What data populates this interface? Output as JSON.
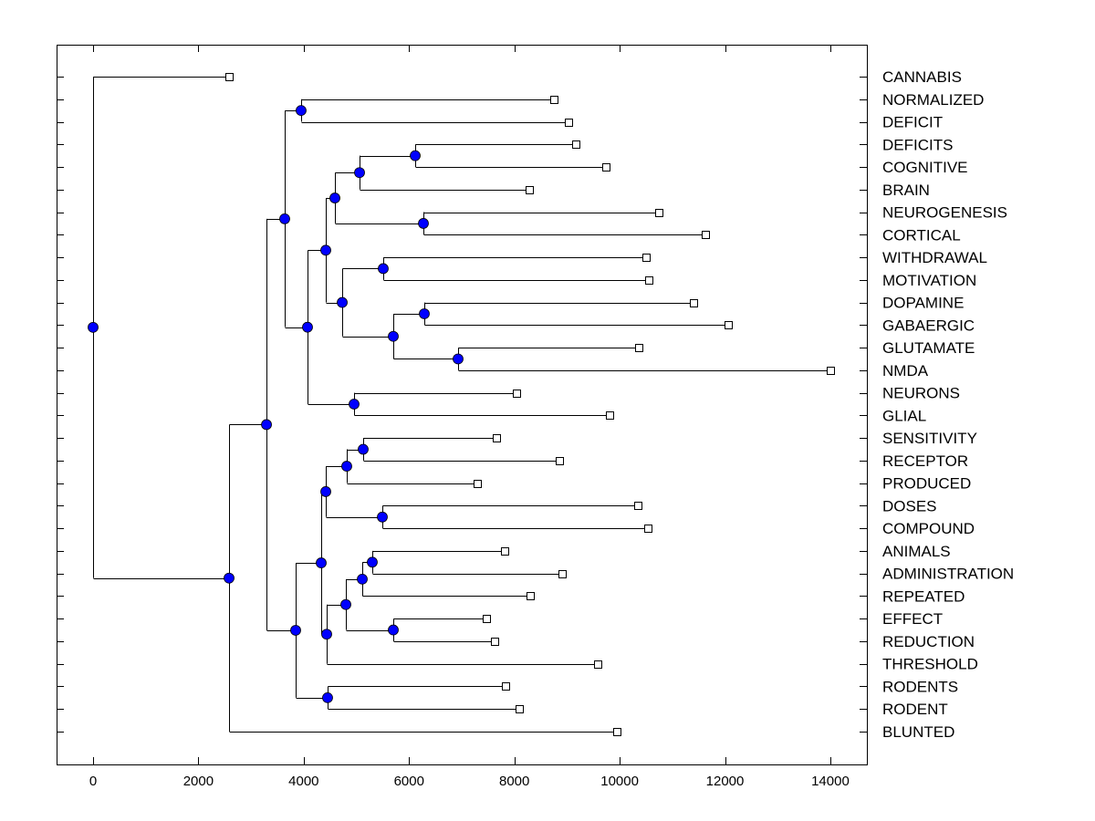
{
  "chart_data": {
    "type": "dendrogram",
    "title": "",
    "xlabel": "",
    "ylabel": "",
    "xlim": [
      -700,
      14700
    ],
    "xticks": [
      0,
      2000,
      4000,
      6000,
      8000,
      10000,
      12000,
      14000
    ],
    "xtick_labels": [
      "0",
      "2000",
      "4000",
      "6000",
      "8000",
      "10000",
      "12000",
      "14000"
    ],
    "grid": false,
    "legend": "none",
    "colors": {
      "node_fill": "#0000ff",
      "line": "#000000",
      "leaf_marker_fill": "#ffffff"
    },
    "leaves": [
      {
        "label": "CANNABIS",
        "value": 2582
      },
      {
        "label": "NORMALIZED",
        "value": 8750
      },
      {
        "label": "DEFICIT",
        "value": 9030
      },
      {
        "label": "DEFICITS",
        "value": 9170
      },
      {
        "label": "COGNITIVE",
        "value": 9740
      },
      {
        "label": "BRAIN",
        "value": 8280
      },
      {
        "label": "NEUROGENESIS",
        "value": 10740
      },
      {
        "label": "CORTICAL",
        "value": 11630
      },
      {
        "label": "WITHDRAWAL",
        "value": 10500
      },
      {
        "label": "MOTIVATION",
        "value": 10550
      },
      {
        "label": "DOPAMINE",
        "value": 11400
      },
      {
        "label": "GABAERGIC",
        "value": 12060
      },
      {
        "label": "GLUTAMATE",
        "value": 10360
      },
      {
        "label": "NMDA",
        "value": 14000
      },
      {
        "label": "NEURONS",
        "value": 8040
      },
      {
        "label": "GLIAL",
        "value": 9810
      },
      {
        "label": "SENSITIVITY",
        "value": 7660
      },
      {
        "label": "RECEPTOR",
        "value": 8860
      },
      {
        "label": "PRODUCED",
        "value": 7300
      },
      {
        "label": "DOSES",
        "value": 10350
      },
      {
        "label": "COMPOUND",
        "value": 10540
      },
      {
        "label": "ANIMALS",
        "value": 7820
      },
      {
        "label": "ADMINISTRATION",
        "value": 8910
      },
      {
        "label": "REPEATED",
        "value": 8300
      },
      {
        "label": "EFFECT",
        "value": 7470
      },
      {
        "label": "REDUCTION",
        "value": 7620
      },
      {
        "label": "THRESHOLD",
        "value": 9580
      },
      {
        "label": "RODENTS",
        "value": 7830
      },
      {
        "label": "RODENT",
        "value": 8090
      },
      {
        "label": "BLUNTED",
        "value": 9950
      }
    ],
    "tree": {
      "value": 0,
      "children": [
        {
          "leaf": 0
        },
        {
          "value": 2582,
          "children": [
            {
              "value": 3293,
              "children": [
                {
                  "value": 3639,
                  "children": [
                    {
                      "value": 3950,
                      "children": [
                        {
                          "leaf": 1
                        },
                        {
                          "leaf": 2
                        }
                      ]
                    },
                    {
                      "value": 4072,
                      "children": [
                        {
                          "value": 4419,
                          "children": [
                            {
                              "value": 4592,
                              "children": [
                                {
                                  "value": 5060,
                                  "children": [
                                    {
                                      "value": 6117,
                                      "children": [
                                        {
                                          "leaf": 3
                                        },
                                        {
                                          "leaf": 4
                                        }
                                      ]
                                    },
                                    {
                                      "leaf": 5
                                    }
                                  ]
                                },
                                {
                                  "value": 6273,
                                  "children": [
                                    {
                                      "leaf": 6
                                    },
                                    {
                                      "leaf": 7
                                    }
                                  ]
                                }
                              ]
                            },
                            {
                              "value": 4731,
                              "children": [
                                {
                                  "value": 5510,
                                  "children": [
                                    {
                                      "leaf": 8
                                    },
                                    {
                                      "leaf": 9
                                    }
                                  ]
                                },
                                {
                                  "value": 5701,
                                  "children": [
                                    {
                                      "value": 6290,
                                      "children": [
                                        {
                                          "leaf": 10
                                        },
                                        {
                                          "leaf": 11
                                        }
                                      ]
                                    },
                                    {
                                      "value": 6931,
                                      "children": [
                                        {
                                          "leaf": 12
                                        },
                                        {
                                          "leaf": 13
                                        }
                                      ]
                                    }
                                  ]
                                }
                              ]
                            }
                          ]
                        },
                        {
                          "value": 4956,
                          "children": [
                            {
                              "leaf": 14
                            },
                            {
                              "leaf": 15
                            }
                          ]
                        }
                      ]
                    }
                  ]
                },
                {
                  "value": 3847,
                  "children": [
                    {
                      "value": 4332,
                      "children": [
                        {
                          "value": 4419,
                          "children": [
                            {
                              "value": 4817,
                              "children": [
                                {
                                  "value": 5129,
                                  "children": [
                                    {
                                      "leaf": 16
                                    },
                                    {
                                      "leaf": 17
                                    }
                                  ]
                                },
                                {
                                  "leaf": 18
                                }
                              ]
                            },
                            {
                              "value": 5493,
                              "children": [
                                {
                                  "leaf": 19
                                },
                                {
                                  "leaf": 20
                                }
                              ]
                            }
                          ]
                        },
                        {
                          "value": 4436,
                          "children": [
                            {
                              "value": 4800,
                              "children": [
                                {
                                  "value": 5112,
                                  "children": [
                                    {
                                      "value": 5302,
                                      "children": [
                                        {
                                          "leaf": 21
                                        },
                                        {
                                          "leaf": 22
                                        }
                                      ]
                                    },
                                    {
                                      "leaf": 23
                                    }
                                  ]
                                },
                                {
                                  "value": 5701,
                                  "children": [
                                    {
                                      "leaf": 24
                                    },
                                    {
                                      "leaf": 25
                                    }
                                  ]
                                }
                              ]
                            },
                            {
                              "leaf": 26
                            }
                          ]
                        }
                      ]
                    },
                    {
                      "value": 4453,
                      "children": [
                        {
                          "leaf": 27
                        },
                        {
                          "leaf": 28
                        }
                      ]
                    }
                  ]
                }
              ]
            },
            {
              "leaf": 29
            }
          ]
        }
      ]
    }
  }
}
